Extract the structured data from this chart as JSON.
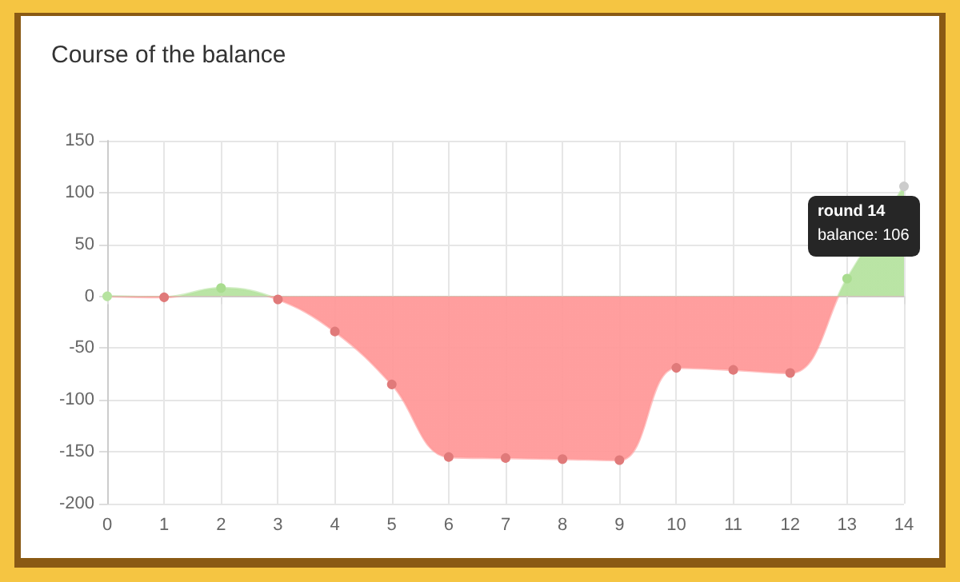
{
  "chart_data": {
    "type": "area",
    "title": "Course of the balance",
    "x": [
      0,
      1,
      2,
      3,
      4,
      5,
      6,
      7,
      8,
      9,
      10,
      11,
      12,
      13,
      14
    ],
    "series": [
      {
        "color": "#ff9999",
        "values": [
          0,
          -1,
          8,
          -3,
          -34,
          -85,
          -155,
          -156,
          -157,
          -158,
          -69,
          -71,
          -74,
          17,
          106
        ],
        "colors": [
          "#b6e3a0",
          "#e07a7a",
          "#a9dc8f",
          "#e07a7a",
          "#e07a7a",
          "#e07a7a",
          "#e07a7a",
          "#e07a7a",
          "#e07a7a",
          "#e07a7a",
          "#e07a7a",
          "#e07a7a",
          "#e07a7a",
          "#a9dc8f",
          "#cccccc"
        ]
      }
    ],
    "xlim": [
      0,
      14
    ],
    "xticks": [
      0,
      1,
      2,
      3,
      4,
      5,
      6,
      7,
      8,
      9,
      10,
      11,
      12,
      13,
      14
    ],
    "ylim": [
      -200,
      150
    ],
    "yticks": [
      -200,
      -150,
      -100,
      -50,
      0,
      50,
      100,
      150
    ],
    "grid": true,
    "marker": "circle",
    "annotations": [
      {
        "text": "round 14",
        "x": 14,
        "y": 106
      },
      "balance: 106"
    ]
  }
}
